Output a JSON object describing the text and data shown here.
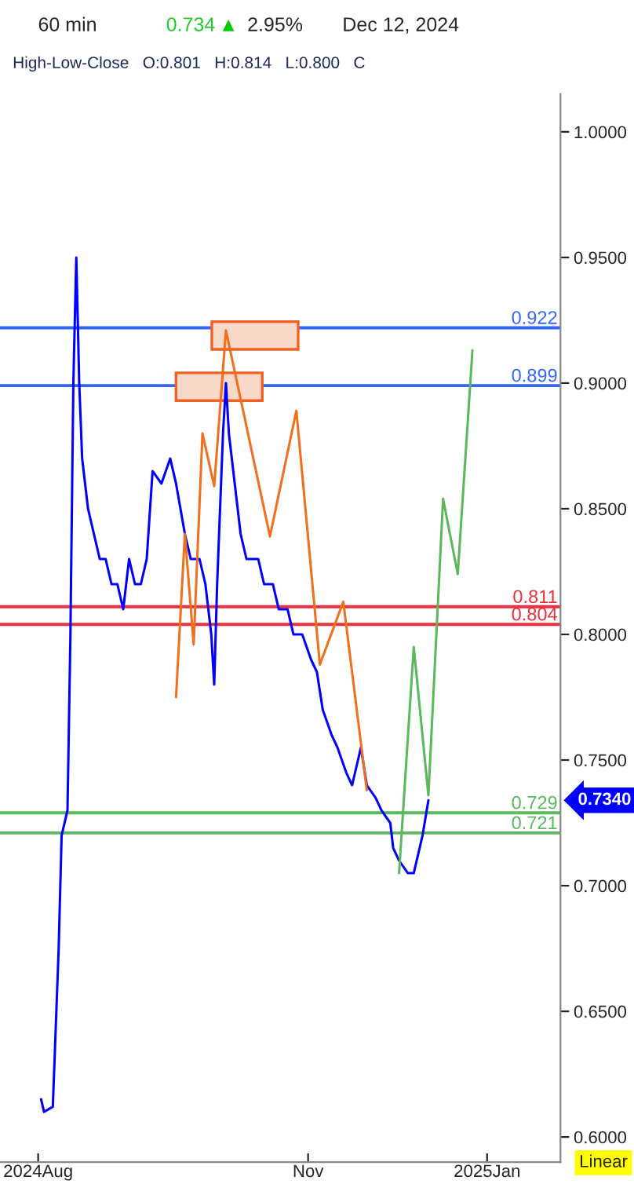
{
  "chart_data": {
    "type": "line",
    "title": "60 min",
    "subtitle": "High-Low-Close   O:0.801   H:0.814   L:0.800   C",
    "annotations": [
      "0.734",
      "▲",
      "2.95%",
      "Dec 12, 2024",
      "0.7340",
      "Linear"
    ],
    "series": [
      {
        "color": "#0000ff",
        "x": [
          "2024-08-02",
          "2024-08-03",
          "2024-08-06",
          "2024-08-08",
          "2024-08-09",
          "2024-08-11",
          "2024-08-12",
          "2024-08-13",
          "2024-08-14",
          "2024-08-15",
          "2024-08-16",
          "2024-08-18",
          "2024-08-20",
          "2024-08-22",
          "2024-08-24",
          "2024-08-26",
          "2024-08-28",
          "2024-08-30",
          "2024-09-01",
          "2024-09-03",
          "2024-09-05",
          "2024-09-07",
          "2024-09-09",
          "2024-09-12",
          "2024-09-15",
          "2024-09-17",
          "2024-09-20",
          "2024-09-22",
          "2024-09-25",
          "2024-09-27",
          "2024-09-29",
          "2024-09-30",
          "2024-10-01",
          "2024-10-03",
          "2024-10-04",
          "2024-10-05",
          "2024-10-07",
          "2024-10-09",
          "2024-10-11",
          "2024-10-13",
          "2024-10-15",
          "2024-10-17",
          "2024-10-20",
          "2024-10-22",
          "2024-10-25",
          "2024-10-27",
          "2024-10-30",
          "2024-11-02",
          "2024-11-04",
          "2024-11-06",
          "2024-11-09",
          "2024-11-11",
          "2024-11-14",
          "2024-11-16",
          "2024-11-19",
          "2024-11-21",
          "2024-11-24",
          "2024-11-26",
          "2024-11-29",
          "2024-11-30",
          "2024-12-02",
          "2024-12-05",
          "2024-12-07",
          "2024-12-10",
          "2024-12-12"
        ],
        "values": [
          0.615,
          0.61,
          0.612,
          0.675,
          0.72,
          0.73,
          0.8,
          0.9,
          0.95,
          0.9,
          0.87,
          0.85,
          0.84,
          0.83,
          0.83,
          0.82,
          0.82,
          0.81,
          0.83,
          0.82,
          0.82,
          0.83,
          0.865,
          0.86,
          0.87,
          0.86,
          0.84,
          0.83,
          0.83,
          0.82,
          0.8,
          0.78,
          0.82,
          0.88,
          0.9,
          0.88,
          0.86,
          0.84,
          0.83,
          0.83,
          0.83,
          0.82,
          0.82,
          0.81,
          0.81,
          0.8,
          0.8,
          0.79,
          0.785,
          0.77,
          0.76,
          0.755,
          0.745,
          0.74,
          0.755,
          0.74,
          0.735,
          0.73,
          0.725,
          0.715,
          0.71,
          0.705,
          0.705,
          0.72,
          0.734
        ]
      },
      {
        "color": "#f07020",
        "x": [
          "2024-09-17",
          "2024-09-20",
          "2024-09-23",
          "2024-09-26",
          "2024-09-30",
          "2024-10-04",
          "2024-10-19",
          "2024-10-28",
          "2024-11-05",
          "2024-11-13",
          "2024-11-21"
        ],
        "values": [
          0.775,
          0.84,
          0.796,
          0.88,
          0.859,
          0.921,
          0.839,
          0.889,
          0.788,
          0.813,
          0.738
        ]
      },
      {
        "color": "#5cb85c",
        "x": [
          "2024-12-02",
          "2024-12-07",
          "2024-12-12",
          "2024-12-17",
          "2024-12-22",
          "2024-12-27"
        ],
        "values": [
          0.705,
          0.795,
          0.736,
          0.854,
          0.824,
          0.913
        ]
      }
    ],
    "ref_lines": [
      {
        "axis": "y",
        "value": 0.922,
        "label": "0.922",
        "color": "#3366ff"
      },
      {
        "axis": "y",
        "value": 0.899,
        "label": "0.899",
        "color": "#3366ff"
      },
      {
        "axis": "y",
        "value": 0.811,
        "label": "0.811",
        "color": "#e83040"
      },
      {
        "axis": "y",
        "value": 0.804,
        "label": "0.804",
        "color": "#e83040"
      },
      {
        "axis": "y",
        "value": 0.729,
        "label": "0.729",
        "color": "#5cb85c"
      },
      {
        "axis": "y",
        "value": 0.721,
        "label": "0.721",
        "color": "#5cb85c"
      }
    ],
    "xlim": [
      "2024-07-19",
      "2025-01-26"
    ],
    "xticks": [
      {
        "value": "2024-08-01",
        "label": "2024Aug"
      },
      {
        "value": "2024-11-01",
        "label": "Nov"
      },
      {
        "value": "2025-01-01",
        "label": "2025Jan"
      }
    ],
    "ylim": [
      0.59,
      1.015
    ],
    "yticks": [
      {
        "value": 0.6,
        "label": "0.6000"
      },
      {
        "value": 0.65,
        "label": "0.6500"
      },
      {
        "value": 0.7,
        "label": "0.7000"
      },
      {
        "value": 0.75,
        "label": "0.7500"
      },
      {
        "value": 0.8,
        "label": "0.8000"
      },
      {
        "value": 0.85,
        "label": "0.8500"
      },
      {
        "value": 0.9,
        "label": "0.9000"
      },
      {
        "value": 0.95,
        "label": "0.9500"
      },
      {
        "value": 1.0,
        "label": "1.0000"
      }
    ],
    "grid": false,
    "legend": false
  }
}
